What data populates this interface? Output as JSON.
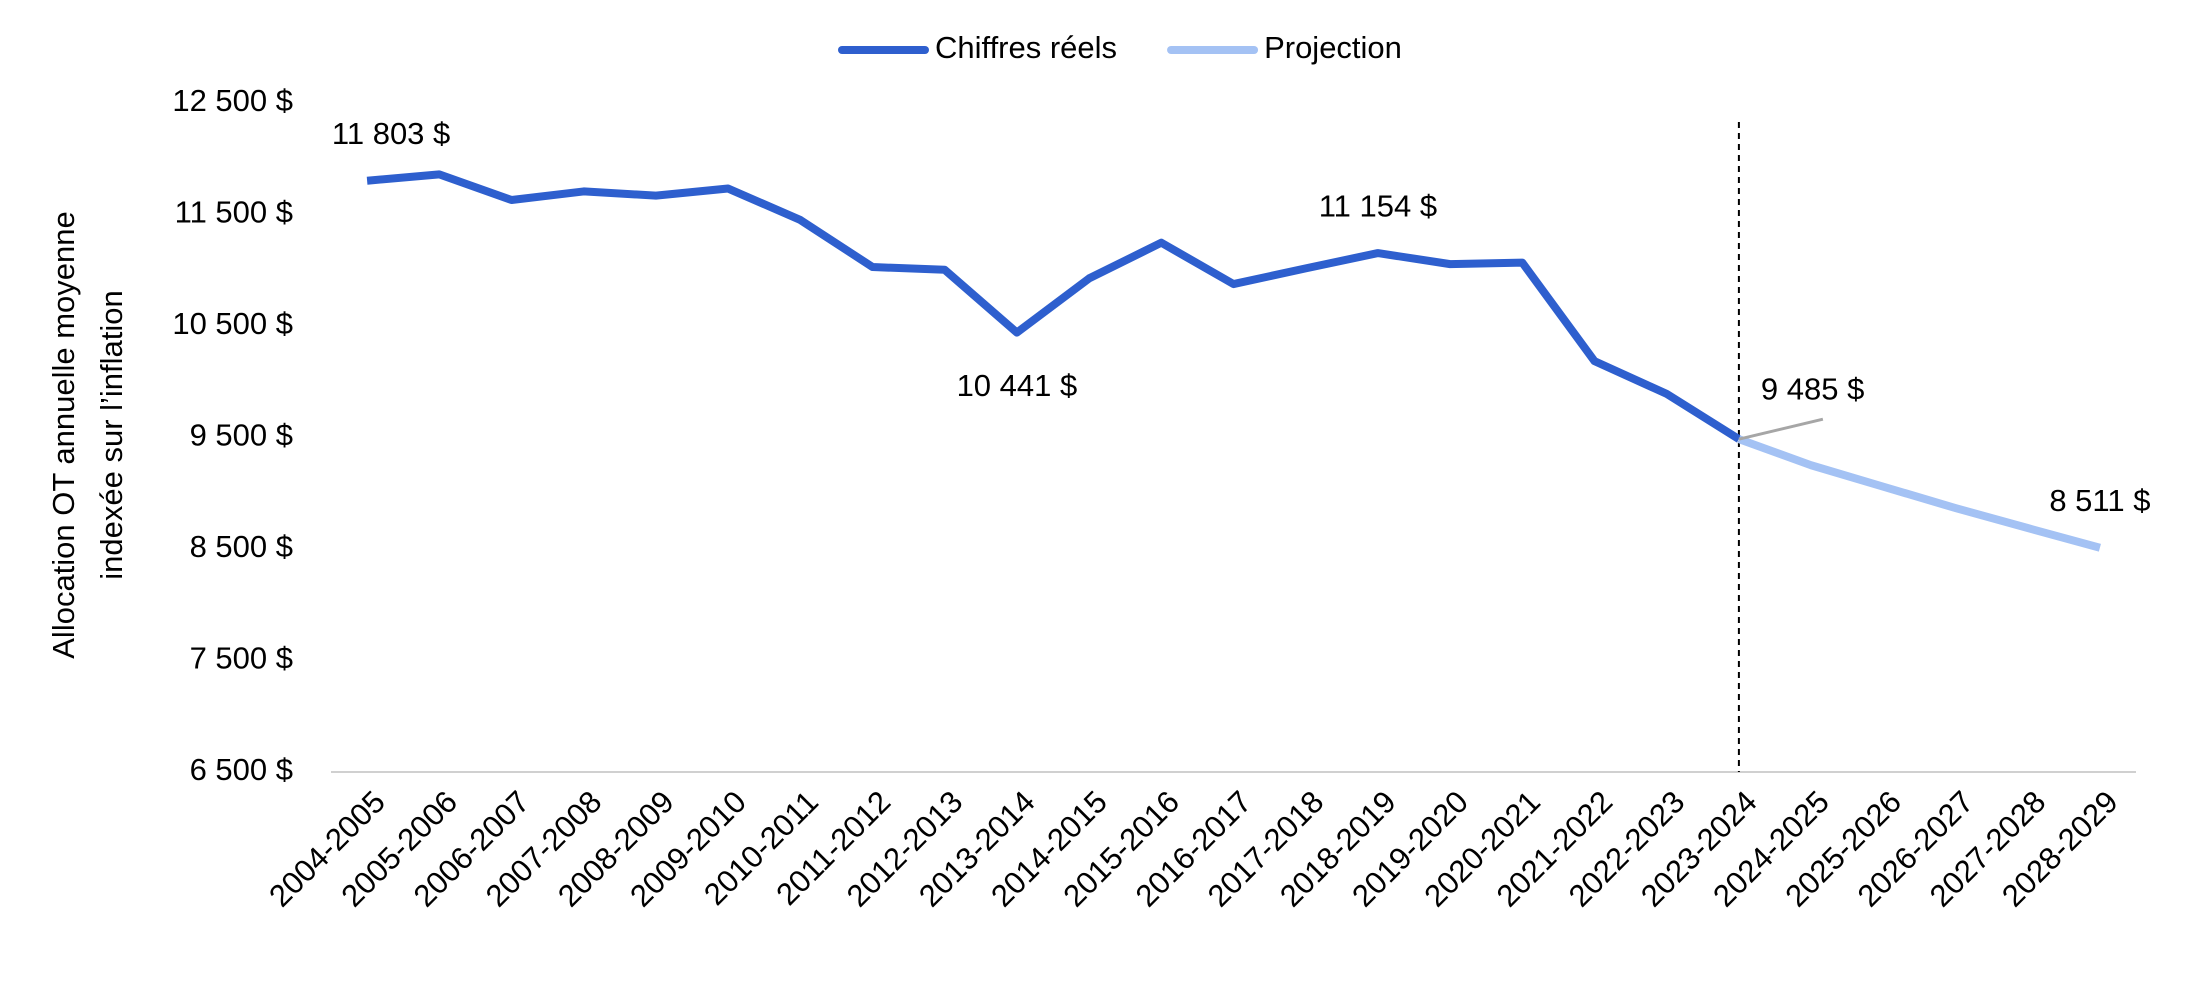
{
  "chart_data": {
    "type": "line",
    "ylabel": [
      "Allocation OT annuelle moyenne",
      "indexée sur l’inflation"
    ],
    "categories": [
      "2004-2005",
      "2005-2006",
      "2006-2007",
      "2007-2008",
      "2008-2009",
      "2009-2010",
      "2010-2011",
      "2011-2012",
      "2012-2013",
      "2013-2014",
      "2014-2015",
      "2015-2016",
      "2016-2017",
      "2017-2018",
      "2018-2019",
      "2019-2020",
      "2020-2021",
      "2021-2022",
      "2022-2023",
      "2023-2024",
      "2024-2025",
      "2025-2026",
      "2026-2027",
      "2027-2028",
      "2028-2029"
    ],
    "series": [
      {
        "name": "Chiffres réels",
        "color": "#2e5fce",
        "values": [
          11803,
          11860,
          11630,
          11707,
          11669,
          11733,
          11451,
          11029,
          11004,
          10441,
          10927,
          11247,
          10876,
          11017,
          11154,
          11055,
          11068,
          10185,
          9891,
          9485,
          null,
          null,
          null,
          null,
          null
        ],
        "value_labels": [
          "11 803 $",
          null,
          null,
          null,
          null,
          null,
          null,
          null,
          null,
          "10 441 $",
          null,
          null,
          null,
          null,
          "11 154 $",
          null,
          null,
          null,
          null,
          "9 485 $",
          null,
          null,
          null,
          null,
          null
        ]
      },
      {
        "name": "Projection",
        "color": "#a4c2f4",
        "values": [
          null,
          null,
          null,
          null,
          null,
          null,
          null,
          null,
          null,
          null,
          null,
          null,
          null,
          null,
          null,
          null,
          null,
          null,
          null,
          9485,
          9251,
          9059,
          8867,
          8688,
          8511
        ],
        "value_labels": [
          null,
          null,
          null,
          null,
          null,
          null,
          null,
          null,
          null,
          null,
          null,
          null,
          null,
          null,
          null,
          null,
          null,
          null,
          null,
          null,
          null,
          null,
          null,
          null,
          "8 511 $"
        ]
      }
    ],
    "ylim": [
      6500,
      12500
    ],
    "yticks": [
      {
        "value": 6500,
        "label": "6 500 $"
      },
      {
        "value": 7500,
        "label": "7 500 $"
      },
      {
        "value": 8500,
        "label": "8 500 $"
      },
      {
        "value": 9500,
        "label": "9 500 $"
      },
      {
        "value": 10500,
        "label": "10 500 $"
      },
      {
        "value": 11500,
        "label": "11 500 $"
      },
      {
        "value": 12500,
        "label": "12 500 $"
      }
    ],
    "grid": false,
    "legend": "top"
  }
}
